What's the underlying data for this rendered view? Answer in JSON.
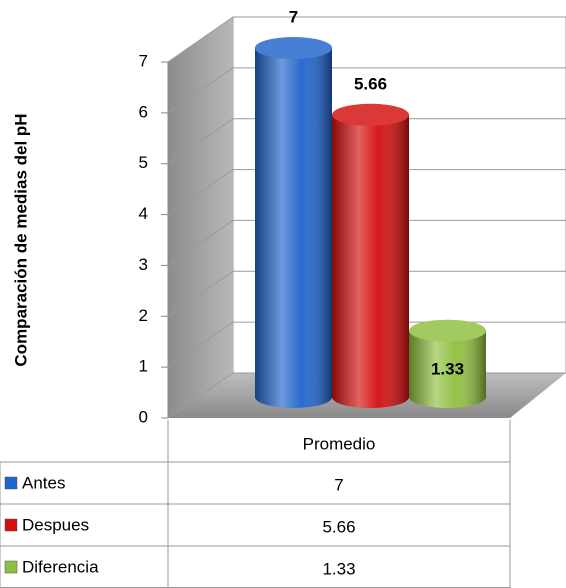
{
  "chart_data": {
    "type": "bar",
    "ylabel": "Comparación de medias del pH",
    "categories": [
      "Promedio"
    ],
    "series": [
      {
        "name": "Antes",
        "color": "#1f63cc",
        "values": [
          7
        ]
      },
      {
        "name": "Despues",
        "color": "#d40d0d",
        "values": [
          5.66
        ]
      },
      {
        "name": "Diferencia",
        "color": "#8fbf3f",
        "values": [
          1.33
        ]
      }
    ],
    "ylim": [
      0,
      7
    ],
    "yticks": [
      0,
      1,
      2,
      3,
      4,
      5,
      6,
      7
    ],
    "grid": true,
    "data_table": true
  }
}
